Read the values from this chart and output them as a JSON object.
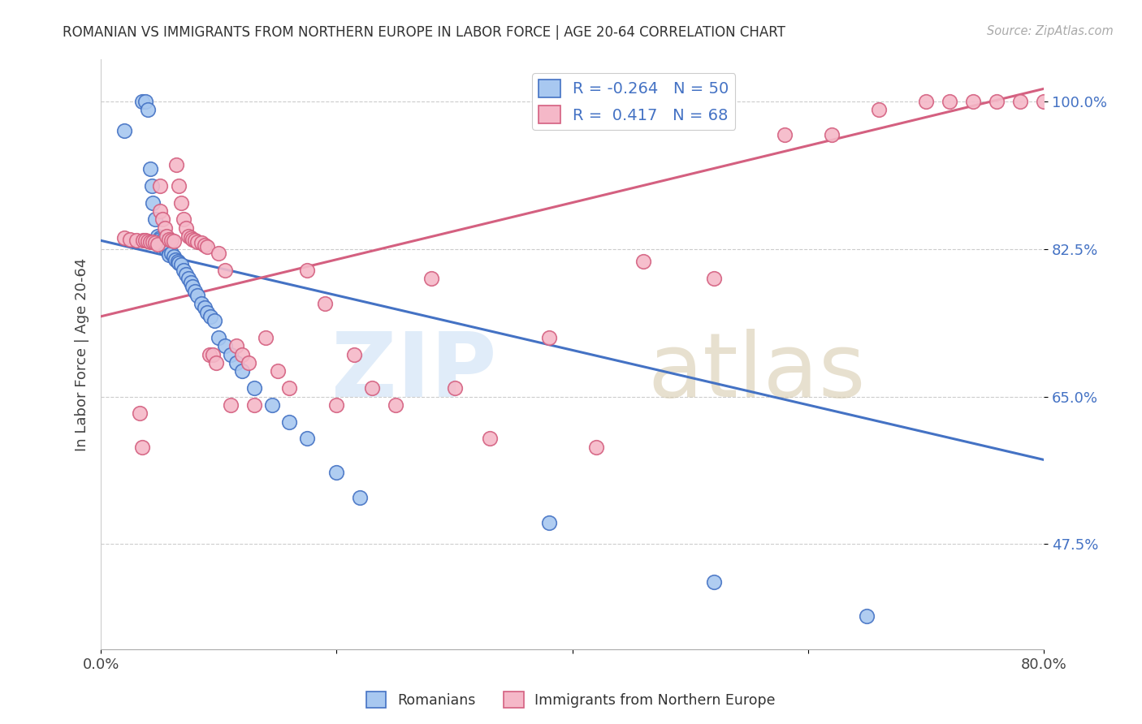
{
  "title": "ROMANIAN VS IMMIGRANTS FROM NORTHERN EUROPE IN LABOR FORCE | AGE 20-64 CORRELATION CHART",
  "source": "Source: ZipAtlas.com",
  "ylabel": "In Labor Force | Age 20-64",
  "xlim": [
    0.0,
    0.8
  ],
  "ylim": [
    0.35,
    1.05
  ],
  "x_ticks": [
    0.0,
    0.2,
    0.4,
    0.6,
    0.8
  ],
  "x_tick_labels": [
    "0.0%",
    "",
    "",
    "",
    "80.0%"
  ],
  "y_ticks": [
    0.475,
    0.65,
    0.825,
    1.0
  ],
  "y_tick_labels": [
    "47.5%",
    "65.0%",
    "82.5%",
    "100.0%"
  ],
  "blue_r": "-0.264",
  "blue_n": "50",
  "pink_r": "0.417",
  "pink_n": "68",
  "blue_color": "#A8C8F0",
  "pink_color": "#F5B8C8",
  "blue_line_color": "#4472C4",
  "pink_line_color": "#D46080",
  "blue_line_x0": 0.0,
  "blue_line_y0": 0.835,
  "blue_line_x1": 0.8,
  "blue_line_y1": 0.575,
  "pink_line_x0": 0.0,
  "pink_line_y0": 0.745,
  "pink_line_x1": 0.8,
  "pink_line_y1": 1.015,
  "blue_scatter_x": [
    0.02,
    0.035,
    0.038,
    0.04,
    0.042,
    0.043,
    0.044,
    0.046,
    0.048,
    0.05,
    0.05,
    0.052,
    0.053,
    0.054,
    0.055,
    0.056,
    0.058,
    0.058,
    0.06,
    0.062,
    0.063,
    0.065,
    0.066,
    0.068,
    0.07,
    0.072,
    0.074,
    0.076,
    0.078,
    0.08,
    0.082,
    0.085,
    0.088,
    0.09,
    0.093,
    0.096,
    0.1,
    0.105,
    0.11,
    0.115,
    0.12,
    0.13,
    0.145,
    0.16,
    0.175,
    0.2,
    0.22,
    0.38,
    0.52,
    0.65
  ],
  "blue_scatter_y": [
    0.965,
    1.0,
    1.0,
    0.99,
    0.92,
    0.9,
    0.88,
    0.86,
    0.84,
    0.838,
    0.836,
    0.835,
    0.833,
    0.83,
    0.826,
    0.824,
    0.822,
    0.818,
    0.82,
    0.816,
    0.812,
    0.81,
    0.808,
    0.806,
    0.8,
    0.795,
    0.79,
    0.785,
    0.78,
    0.775,
    0.77,
    0.76,
    0.755,
    0.75,
    0.745,
    0.74,
    0.72,
    0.71,
    0.7,
    0.69,
    0.68,
    0.66,
    0.64,
    0.62,
    0.6,
    0.56,
    0.53,
    0.5,
    0.43,
    0.39
  ],
  "pink_scatter_x": [
    0.02,
    0.025,
    0.03,
    0.033,
    0.035,
    0.036,
    0.038,
    0.04,
    0.042,
    0.044,
    0.046,
    0.048,
    0.05,
    0.05,
    0.052,
    0.054,
    0.056,
    0.058,
    0.06,
    0.062,
    0.064,
    0.066,
    0.068,
    0.07,
    0.072,
    0.074,
    0.076,
    0.078,
    0.08,
    0.082,
    0.085,
    0.088,
    0.09,
    0.092,
    0.095,
    0.098,
    0.1,
    0.105,
    0.11,
    0.115,
    0.12,
    0.125,
    0.13,
    0.14,
    0.15,
    0.16,
    0.175,
    0.19,
    0.2,
    0.215,
    0.23,
    0.25,
    0.28,
    0.3,
    0.33,
    0.38,
    0.42,
    0.46,
    0.52,
    0.58,
    0.62,
    0.66,
    0.7,
    0.72,
    0.74,
    0.76,
    0.78,
    0.8
  ],
  "pink_scatter_y": [
    0.838,
    0.836,
    0.835,
    0.63,
    0.59,
    0.835,
    0.835,
    0.834,
    0.833,
    0.833,
    0.832,
    0.831,
    0.9,
    0.87,
    0.86,
    0.85,
    0.84,
    0.836,
    0.835,
    0.834,
    0.925,
    0.9,
    0.88,
    0.86,
    0.85,
    0.84,
    0.838,
    0.836,
    0.835,
    0.833,
    0.832,
    0.83,
    0.828,
    0.7,
    0.7,
    0.69,
    0.82,
    0.8,
    0.64,
    0.71,
    0.7,
    0.69,
    0.64,
    0.72,
    0.68,
    0.66,
    0.8,
    0.76,
    0.64,
    0.7,
    0.66,
    0.64,
    0.79,
    0.66,
    0.6,
    0.72,
    0.59,
    0.81,
    0.79,
    0.96,
    0.96,
    0.99,
    1.0,
    1.0,
    1.0,
    1.0,
    1.0,
    1.0
  ]
}
